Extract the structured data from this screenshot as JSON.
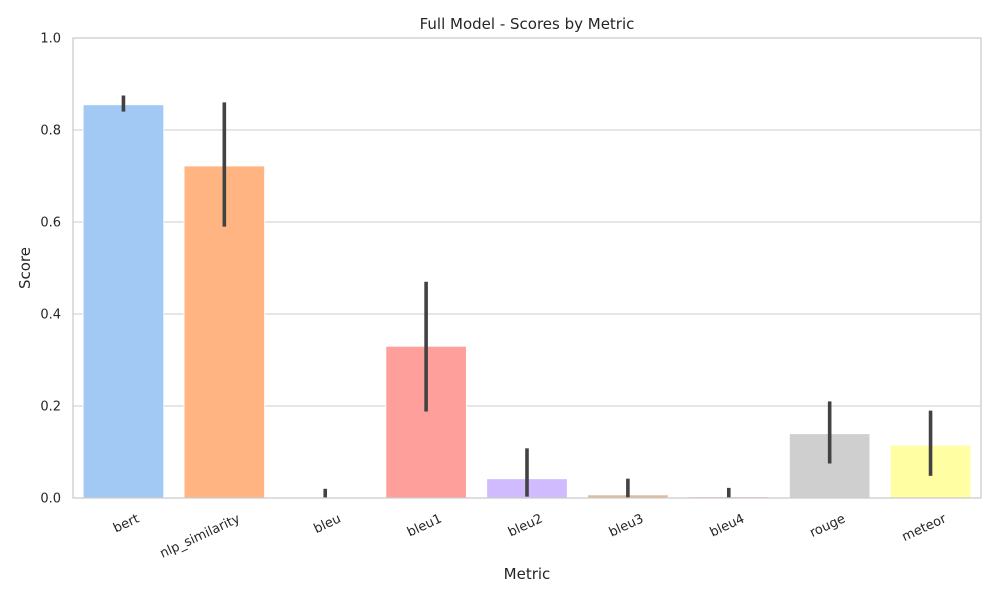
{
  "chart_data": {
    "type": "bar",
    "title": "Full Model - Scores by Metric",
    "xlabel": "Metric",
    "ylabel": "Score",
    "ylim": [
      0,
      1.0
    ],
    "yticks": [
      "0.0",
      "0.2",
      "0.4",
      "0.6",
      "0.8",
      "1.0"
    ],
    "grid": true,
    "categories": [
      "bert",
      "nlp_similarity",
      "bleu",
      "bleu1",
      "bleu2",
      "bleu3",
      "bleu4",
      "rouge",
      "meteor"
    ],
    "values": [
      0.855,
      0.722,
      0.001,
      0.33,
      0.042,
      0.007,
      0.003,
      0.14,
      0.115
    ],
    "error_low": [
      0.84,
      0.59,
      0.0,
      0.188,
      0.003,
      0.001,
      0.0,
      0.075,
      0.048
    ],
    "error_high": [
      0.875,
      0.86,
      0.02,
      0.47,
      0.108,
      0.042,
      0.022,
      0.21,
      0.19
    ],
    "colors": [
      "#a1c9f4",
      "#ffb482",
      "#8de5a1",
      "#ff9f9b",
      "#d0bbff",
      "#debb9b",
      "#fab0e4",
      "#cfcfcf",
      "#fffea3"
    ],
    "error_color": "#424242"
  }
}
